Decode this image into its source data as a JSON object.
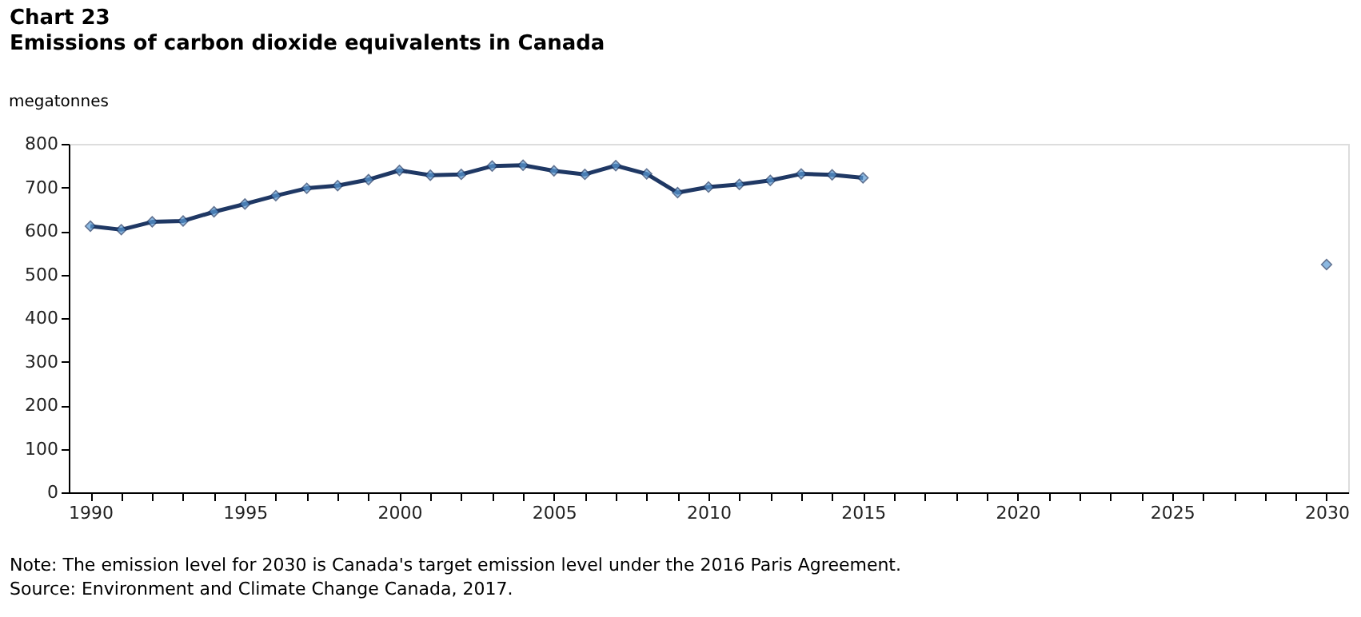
{
  "chart_data": {
    "type": "line",
    "title": "Chart 23",
    "subtitle": "Emissions of carbon dioxide equivalents in Canada",
    "ylabel": "megatonnes",
    "series": [
      {
        "color": "#1f3864",
        "x": [
          1990,
          1991,
          1992,
          1993,
          1994,
          1995,
          1996,
          1997,
          1998,
          1999,
          2000,
          2001,
          2002,
          2003,
          2004,
          2005,
          2006,
          2007,
          2008,
          2009,
          2010,
          2011,
          2012,
          2013,
          2014,
          2015
        ],
        "values": [
          611,
          603,
          621,
          623,
          644,
          662,
          681,
          698,
          704,
          718,
          739,
          728,
          730,
          749,
          751,
          738,
          730,
          750,
          731,
          688,
          701,
          707,
          716,
          731,
          729,
          722
        ]
      },
      {
        "type": "scatter",
        "color": "#5b9bd5",
        "x": [
          2030
        ],
        "values": [
          523
        ]
      }
    ],
    "marker": "diamond",
    "line_style": "solid",
    "grid": false,
    "legend": false,
    "xlim": [
      1989.3,
      2030.7
    ],
    "xticks": [
      1990,
      {
        "value": 1991,
        "label": null
      },
      {
        "value": 1992,
        "label": null
      },
      {
        "value": 1993,
        "label": null
      },
      {
        "value": 1994,
        "label": null
      },
      1995,
      {
        "value": 1996,
        "label": null
      },
      {
        "value": 1997,
        "label": null
      },
      {
        "value": 1998,
        "label": null
      },
      {
        "value": 1999,
        "label": null
      },
      2000,
      {
        "value": 2001,
        "label": null
      },
      {
        "value": 2002,
        "label": null
      },
      {
        "value": 2003,
        "label": null
      },
      {
        "value": 2004,
        "label": null
      },
      2005,
      {
        "value": 2006,
        "label": null
      },
      {
        "value": 2007,
        "label": null
      },
      {
        "value": 2008,
        "label": null
      },
      {
        "value": 2009,
        "label": null
      },
      2010,
      {
        "value": 2011,
        "label": null
      },
      {
        "value": 2012,
        "label": null
      },
      {
        "value": 2013,
        "label": null
      },
      {
        "value": 2014,
        "label": null
      },
      2015,
      {
        "value": 2016,
        "label": null
      },
      {
        "value": 2017,
        "label": null
      },
      {
        "value": 2018,
        "label": null
      },
      {
        "value": 2019,
        "label": null
      },
      2020,
      {
        "value": 2021,
        "label": null
      },
      {
        "value": 2022,
        "label": null
      },
      {
        "value": 2023,
        "label": null
      },
      {
        "value": 2024,
        "label": null
      },
      2025,
      {
        "value": 2026,
        "label": null
      },
      {
        "value": 2027,
        "label": null
      },
      {
        "value": 2028,
        "label": null
      },
      {
        "value": 2029,
        "label": null
      },
      2030
    ],
    "ylim": [
      0,
      800
    ],
    "yticks": [
      0,
      100,
      200,
      300,
      400,
      500,
      600,
      700,
      800
    ],
    "annotations": [
      "Note: The emission level for 2030 is Canada's target emission level under the 2016 Paris Agreement.",
      "Source: Environment and Climate Change Canada, 2017."
    ]
  }
}
